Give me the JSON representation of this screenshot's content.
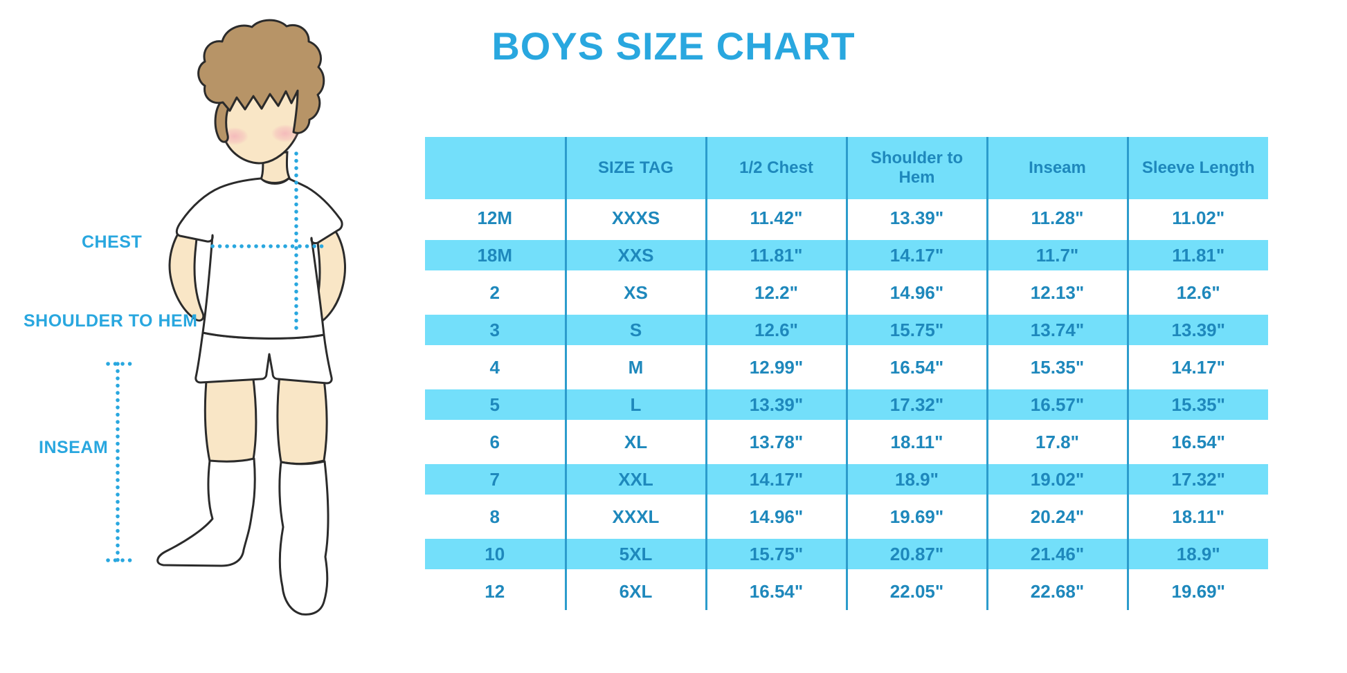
{
  "page_title": "BOYS SIZE CHART",
  "colors": {
    "title": "#29A7DF",
    "stripe": "#73DFFA",
    "table_text": "#1E88BC",
    "divider": "#2C9CCC",
    "dotted": "#29A7DF",
    "skin": "#F9E6C6",
    "hair": "#B79467",
    "outline": "#2B2B2B"
  },
  "diagram": {
    "labels": {
      "chest": "CHEST",
      "shoulder_to_hem": "SHOULDER TO HEM",
      "inseam": "INSEAM"
    }
  },
  "chart_data": {
    "type": "table",
    "title": "BOYS SIZE CHART",
    "columns": [
      "",
      "SIZE TAG",
      "1/2 Chest",
      "Shoulder to Hem",
      "Inseam",
      "Sleeve Length"
    ],
    "rows": [
      [
        "12M",
        "XXXS",
        "11.42\"",
        "13.39\"",
        "11.28\"",
        "11.02\""
      ],
      [
        "18M",
        "XXS",
        "11.81\"",
        "14.17\"",
        "11.7\"",
        "11.81\""
      ],
      [
        "2",
        "XS",
        "12.2\"",
        "14.96\"",
        "12.13\"",
        "12.6\""
      ],
      [
        "3",
        "S",
        "12.6\"",
        "15.75\"",
        "13.74\"",
        "13.39\""
      ],
      [
        "4",
        "M",
        "12.99\"",
        "16.54\"",
        "15.35\"",
        "14.17\""
      ],
      [
        "5",
        "L",
        "13.39\"",
        "17.32\"",
        "16.57\"",
        "15.35\""
      ],
      [
        "6",
        "XL",
        "13.78\"",
        "18.11\"",
        "17.8\"",
        "16.54\""
      ],
      [
        "7",
        "XXL",
        "14.17\"",
        "18.9\"",
        "19.02\"",
        "17.32\""
      ],
      [
        "8",
        "XXXL",
        "14.96\"",
        "19.69\"",
        "20.24\"",
        "18.11\""
      ],
      [
        "10",
        "5XL",
        "15.75\"",
        "20.87\"",
        "21.46\"",
        "18.9\""
      ],
      [
        "12",
        "6XL",
        "16.54\"",
        "22.05\"",
        "22.68\"",
        "19.69\""
      ]
    ],
    "units": "inches",
    "stripe_pattern": "alternating rows highlighted starting with second data row",
    "grid": "vertical column dividers only"
  }
}
